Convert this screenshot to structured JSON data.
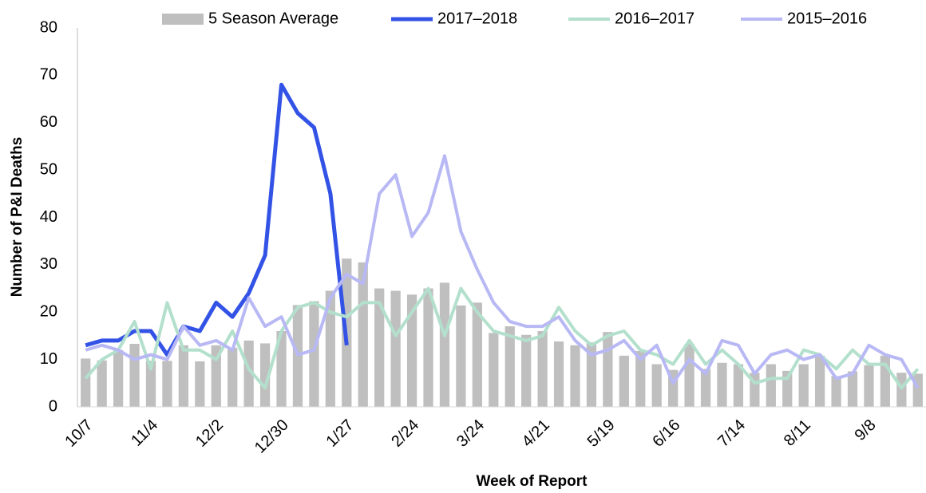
{
  "chart_data": {
    "type": "bar",
    "x_label": "Week of Report",
    "y_label": "Number of P&I Deaths",
    "categories": [
      "10/7",
      null,
      null,
      null,
      "11/4",
      null,
      null,
      null,
      "12/2",
      null,
      null,
      null,
      "12/30",
      null,
      null,
      null,
      "1/27",
      null,
      null,
      null,
      "2/24",
      null,
      null,
      null,
      "3/24",
      null,
      null,
      null,
      "4/21",
      null,
      null,
      null,
      "5/19",
      null,
      null,
      null,
      "6/16",
      null,
      null,
      null,
      "7/14",
      null,
      null,
      null,
      "8/11",
      null,
      null,
      null,
      "9/8",
      null,
      null,
      null
    ],
    "ylim": [
      0,
      80
    ],
    "yticks": [
      0,
      10,
      20,
      30,
      40,
      50,
      60,
      70,
      80
    ],
    "grid": false,
    "legend": "top",
    "series": [
      {
        "name": "5 Season Average",
        "type": "bar",
        "color": "#bfbfbf",
        "values": [
          10.2,
          9.8,
          12,
          13.3,
          9.7,
          9.7,
          13,
          9.6,
          13,
          12.5,
          14,
          13.4,
          16,
          21.5,
          22.3,
          24.5,
          31.3,
          30.5,
          25,
          24.5,
          23.7,
          25,
          26.2,
          21.4,
          22,
          15.6,
          17,
          15.2,
          16,
          13.8,
          13,
          13.6,
          15.8,
          10.8,
          11.8,
          9,
          7.8,
          13.3,
          8,
          9.3,
          9,
          7.2,
          9,
          7.6,
          9,
          10.8,
          6.5,
          7.5,
          8.8,
          10.8,
          7.2,
          7
        ]
      },
      {
        "name": "2017–2018",
        "type": "line",
        "color": "#3352e6",
        "width": 5,
        "values": [
          13,
          14,
          14,
          16,
          16,
          11,
          17,
          16,
          22,
          19,
          24,
          32,
          68,
          62,
          59,
          45,
          13,
          null,
          null,
          null,
          null,
          null,
          null,
          null,
          null,
          null,
          null,
          null,
          null,
          null,
          null,
          null,
          null,
          null,
          null,
          null,
          null,
          null,
          null,
          null,
          null,
          null,
          null,
          null,
          null,
          null,
          null,
          null,
          null,
          null,
          null,
          null
        ]
      },
      {
        "name": "2016–2017",
        "type": "line",
        "color": "#b3e0cc",
        "width": 4,
        "values": [
          6,
          10,
          12,
          18,
          8,
          22,
          12,
          12,
          10,
          16,
          8,
          4,
          16,
          21,
          22,
          20,
          19,
          22,
          22,
          15,
          20,
          25,
          15,
          25,
          20,
          16,
          15,
          14,
          15,
          21,
          16,
          13,
          15,
          16,
          12,
          11,
          9,
          14,
          9,
          12,
          9,
          5,
          6,
          6,
          12,
          11,
          8,
          12,
          9,
          9,
          4,
          8
        ]
      },
      {
        "name": "2015–2016",
        "type": "line",
        "color": "#b8b8f5",
        "width": 4,
        "values": [
          12,
          13,
          12,
          10,
          11,
          10,
          17,
          13,
          14,
          12,
          23,
          17,
          19,
          11,
          12,
          23,
          28,
          26,
          45,
          49,
          36,
          41,
          53,
          37,
          29,
          22,
          18,
          17,
          17,
          19,
          14,
          11,
          12,
          14,
          10,
          13,
          5,
          10,
          7,
          14,
          13,
          7,
          11,
          12,
          10,
          11,
          6,
          7,
          13,
          11,
          10,
          4
        ]
      }
    ]
  }
}
